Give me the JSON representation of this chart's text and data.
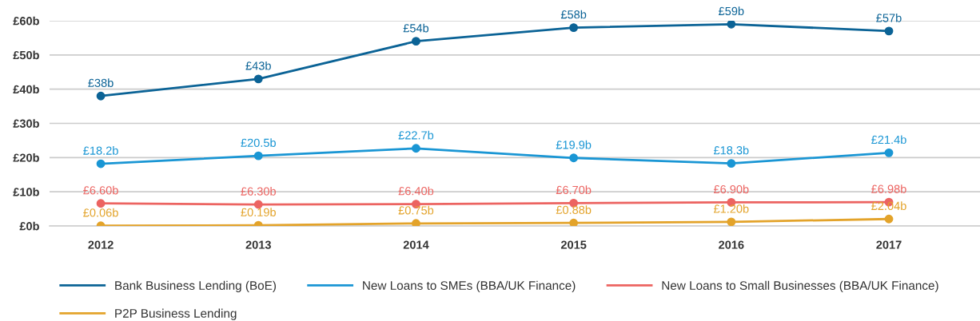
{
  "chart_data": {
    "type": "line",
    "categories": [
      "2012",
      "2013",
      "2014",
      "2015",
      "2016",
      "2017"
    ],
    "series": [
      {
        "name": "Bank Business Lending (BoE)",
        "color": "#0b6396",
        "values": [
          38,
          43,
          54,
          58,
          59,
          57
        ],
        "value_labels": [
          "£38b",
          "£43b",
          "£54b",
          "£58b",
          "£59b",
          "£57b"
        ]
      },
      {
        "name": "New Loans to SMEs (BBA/UK Finance)",
        "color": "#1a96d4",
        "values": [
          18.2,
          20.5,
          22.7,
          19.9,
          18.3,
          21.4
        ],
        "value_labels": [
          "£18.2b",
          "£20.5b",
          "£22.7b",
          "£19.9b",
          "£18.3b",
          "£21.4b"
        ]
      },
      {
        "name": "New Loans to Small Businesses (BBA/UK Finance)",
        "color": "#ec6461",
        "values": [
          6.6,
          6.3,
          6.4,
          6.7,
          6.9,
          6.98
        ],
        "value_labels": [
          "£6.60b",
          "£6.30b",
          "£6.40b",
          "£6.70b",
          "£6.90b",
          "£6.98b"
        ]
      },
      {
        "name": "P2P Business Lending",
        "color": "#e3a32a",
        "values": [
          0.06,
          0.19,
          0.75,
          0.88,
          1.2,
          2.04
        ],
        "value_labels": [
          "£0.06b",
          "£0.19b",
          "£0.75b",
          "£0.88b",
          "£1.20b",
          "£2.04b"
        ]
      }
    ],
    "ylim": [
      0,
      60
    ],
    "yticks": [
      {
        "value": 0,
        "label": "£0b"
      },
      {
        "value": 10,
        "label": "£10b"
      },
      {
        "value": 20,
        "label": "£20b"
      },
      {
        "value": 30,
        "label": "£30b"
      },
      {
        "value": 40,
        "label": "£40b"
      },
      {
        "value": 50,
        "label": "£50b"
      },
      {
        "value": 60,
        "label": "£60b"
      }
    ],
    "grid": "y",
    "legend": "bottom",
    "marker": "circle",
    "line_style": "solid"
  }
}
